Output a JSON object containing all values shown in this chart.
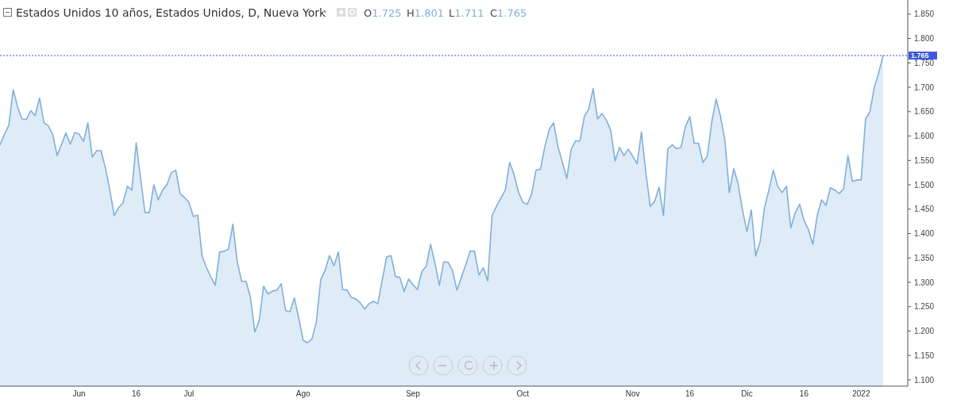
{
  "chart_data": {
    "type": "area",
    "title": "Estados Unidos 10 años, Estados Unidos, D, Nueva York",
    "annotations": [
      "O1.725",
      "H1.801",
      "L1.711",
      "C1.765"
    ],
    "categories": [
      null,
      null,
      null,
      null,
      null,
      null,
      null,
      null,
      null,
      null,
      null,
      null,
      null,
      null,
      null,
      null,
      null,
      null,
      "Jun",
      null,
      null,
      null,
      null,
      null,
      null,
      null,
      null,
      null,
      null,
      null,
      null,
      "16",
      null,
      null,
      null,
      null,
      null,
      null,
      null,
      null,
      null,
      null,
      null,
      "Jul",
      null,
      null,
      null,
      null,
      null,
      null,
      null,
      null,
      null,
      null,
      null,
      null,
      null,
      null,
      null,
      null,
      null,
      null,
      null,
      null,
      null,
      null,
      null,
      null,
      null,
      "Ago",
      null,
      null,
      null,
      null,
      null,
      null,
      null,
      null,
      null,
      null,
      null,
      null,
      null,
      null,
      null,
      null,
      null,
      null,
      null,
      null,
      null,
      null,
      null,
      null,
      "Sep",
      null,
      null,
      null,
      null,
      null,
      null,
      null,
      null,
      null,
      null,
      null,
      null,
      null,
      null,
      null,
      null,
      null,
      null,
      null,
      null,
      null,
      null,
      null,
      null,
      "Oct",
      null,
      null,
      null,
      null,
      null,
      null,
      null,
      null,
      null,
      null,
      null,
      null,
      null,
      null,
      null,
      null,
      null,
      null,
      null,
      null,
      null,
      null,
      null,
      null,
      "Nov",
      null,
      null,
      null,
      null,
      null,
      null,
      null,
      null,
      null,
      null,
      null,
      null,
      "16",
      null,
      null,
      null,
      null,
      null,
      null,
      null,
      null,
      null,
      null,
      null,
      null,
      "Dic",
      null,
      null,
      null,
      null,
      null,
      null,
      null,
      null,
      null,
      null,
      null,
      null,
      "16",
      null,
      null,
      null,
      null,
      null,
      null,
      null,
      null,
      null,
      null,
      null,
      null,
      "2022",
      null,
      null,
      null,
      null,
      null
    ],
    "series": [
      {
        "color": "#7fb0dc",
        "values": [
          1.582,
          1.603,
          1.622,
          1.695,
          1.66,
          1.635,
          1.634,
          1.652,
          1.642,
          1.678,
          1.627,
          1.621,
          1.603,
          1.56,
          1.583,
          1.606,
          1.583,
          1.607,
          1.604,
          1.589,
          1.627,
          1.557,
          1.57,
          1.57,
          1.534,
          1.489,
          1.437,
          1.453,
          1.463,
          1.497,
          1.489,
          1.586,
          1.513,
          1.443,
          1.443,
          1.5,
          1.469,
          1.489,
          1.5,
          1.525,
          1.53,
          1.482,
          1.474,
          1.464,
          1.435,
          1.438,
          1.354,
          1.33,
          1.311,
          1.294,
          1.362,
          1.364,
          1.368,
          1.419,
          1.342,
          1.302,
          1.302,
          1.269,
          1.198,
          1.222,
          1.292,
          1.276,
          1.282,
          1.284,
          1.297,
          1.242,
          1.24,
          1.268,
          1.226,
          1.181,
          1.176,
          1.184,
          1.219,
          1.305,
          1.325,
          1.355,
          1.334,
          1.362,
          1.285,
          1.284,
          1.269,
          1.266,
          1.258,
          1.245,
          1.256,
          1.261,
          1.256,
          1.305,
          1.352,
          1.355,
          1.312,
          1.31,
          1.281,
          1.307,
          1.295,
          1.285,
          1.322,
          1.333,
          1.378,
          1.339,
          1.294,
          1.342,
          1.341,
          1.324,
          1.284,
          1.31,
          1.336,
          1.364,
          1.364,
          1.315,
          1.33,
          1.303,
          1.437,
          1.456,
          1.473,
          1.489,
          1.546,
          1.521,
          1.485,
          1.464,
          1.46,
          1.481,
          1.53,
          1.532,
          1.578,
          1.614,
          1.627,
          1.578,
          1.546,
          1.513,
          1.573,
          1.59,
          1.59,
          1.64,
          1.656,
          1.697,
          1.635,
          1.646,
          1.633,
          1.612,
          1.549,
          1.577,
          1.56,
          1.573,
          1.559,
          1.543,
          1.608,
          1.525,
          1.456,
          1.466,
          1.495,
          1.437,
          1.574,
          1.582,
          1.574,
          1.577,
          1.619,
          1.64,
          1.585,
          1.585,
          1.546,
          1.559,
          1.629,
          1.676,
          1.64,
          1.59,
          1.484,
          1.533,
          1.502,
          1.448,
          1.404,
          1.448,
          1.354,
          1.383,
          1.453,
          1.489,
          1.53,
          1.497,
          1.484,
          1.497,
          1.412,
          1.443,
          1.46,
          1.427,
          1.408,
          1.378,
          1.437,
          1.469,
          1.458,
          1.494,
          1.489,
          1.482,
          1.492,
          1.56,
          1.507,
          1.51,
          1.51,
          1.635,
          1.65,
          1.7,
          1.73,
          1.765
        ]
      }
    ],
    "ylim": [
      1.087,
      1.879
    ],
    "yticks": [
      {
        "value": 1.1,
        "label": "1.100"
      },
      {
        "value": 1.15,
        "label": "1.150"
      },
      {
        "value": 1.2,
        "label": "1.200"
      },
      {
        "value": 1.25,
        "label": "1.250"
      },
      {
        "value": 1.3,
        "label": "1.300"
      },
      {
        "value": 1.35,
        "label": "1.350"
      },
      {
        "value": 1.4,
        "label": "1.400"
      },
      {
        "value": 1.45,
        "label": "1.450"
      },
      {
        "value": 1.5,
        "label": "1.500"
      },
      {
        "value": 1.55,
        "label": "1.550"
      },
      {
        "value": 1.6,
        "label": "1.600"
      },
      {
        "value": 1.65,
        "label": "1.650"
      },
      {
        "value": 1.7,
        "label": "1.700"
      },
      {
        "value": 1.75,
        "label": "1.750"
      },
      {
        "value": 1.8,
        "label": "1.800"
      },
      {
        "value": 1.85,
        "label": "1.850"
      }
    ],
    "ref_lines": [
      {
        "axis": "y",
        "value": 1.765,
        "label": "1.765",
        "color": "#3c5ad8",
        "line_style": "dotted"
      }
    ],
    "grid": false
  }
}
